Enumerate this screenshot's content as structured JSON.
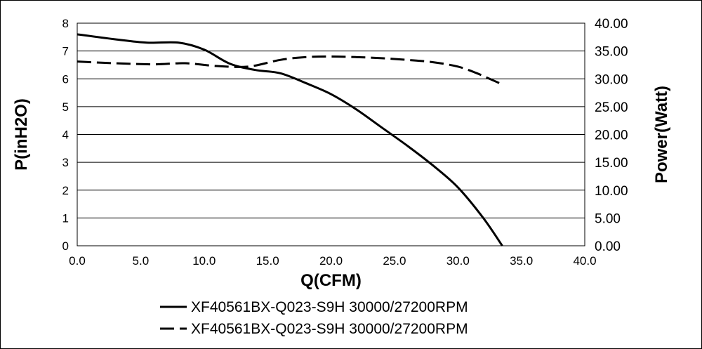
{
  "chart_data": {
    "type": "line",
    "xlabel": "Q(CFM)",
    "ylabel": "P(inH2O)",
    "y2label": "Power(Watt)",
    "xlim": [
      0,
      40
    ],
    "ylim": [
      0,
      8
    ],
    "y2lim": [
      0,
      40
    ],
    "x_ticks": [
      "0.0",
      "5.0",
      "10.0",
      "15.0",
      "20.0",
      "25.0",
      "30.0",
      "35.0",
      "40.0"
    ],
    "y_ticks": [
      "0",
      "1",
      "2",
      "3",
      "4",
      "5",
      "6",
      "7",
      "8"
    ],
    "y2_ticks": [
      "0.00",
      "5.00",
      "10.00",
      "15.00",
      "20.00",
      "25.00",
      "30.00",
      "35.00",
      "40.00"
    ],
    "grid": "horizontal",
    "legend_position": "bottom",
    "series": [
      {
        "name": "XF40561BX-Q023-S9H 30000/27200RPM",
        "axis": "left",
        "style": "solid",
        "color": "#000000",
        "x": [
          0,
          3,
          5.5,
          8,
          10,
          12,
          14,
          16,
          18,
          20,
          22,
          24,
          26,
          28,
          30,
          32,
          33.5
        ],
        "y": [
          7.6,
          7.42,
          7.3,
          7.3,
          7.05,
          6.55,
          6.32,
          6.2,
          5.85,
          5.45,
          4.9,
          4.25,
          3.6,
          2.9,
          2.1,
          1.0,
          0.0
        ]
      },
      {
        "name": "XF40561BX-Q023-S9H 30000/27200RPM",
        "axis": "right",
        "style": "dashed",
        "color": "#000000",
        "x": [
          0,
          3,
          6,
          8.5,
          11,
          13.5,
          16,
          18,
          20,
          22,
          24,
          26,
          28,
          30,
          31.5,
          32.5,
          33.5
        ],
        "y": [
          33.1,
          32.8,
          32.6,
          32.8,
          32.3,
          32.2,
          33.4,
          33.9,
          34.0,
          33.9,
          33.7,
          33.4,
          33.0,
          32.2,
          31.0,
          30.0,
          29.0
        ]
      }
    ]
  }
}
